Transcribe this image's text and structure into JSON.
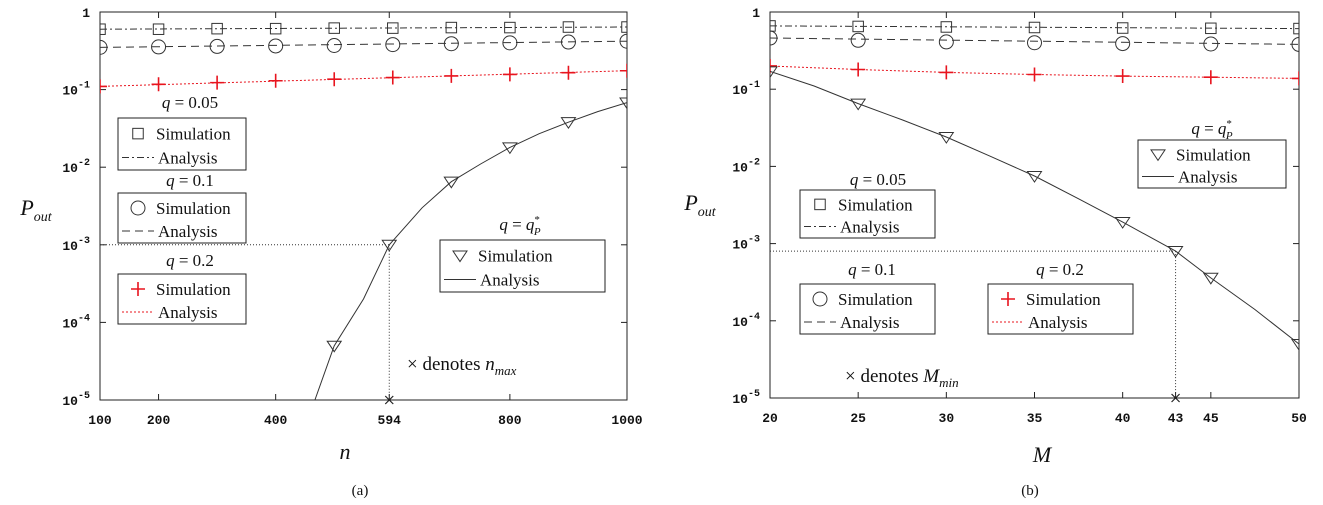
{
  "chart_data": [
    {
      "type": "line",
      "panel_label": "(a)",
      "xlabel": "n",
      "ylabel": "P",
      "ylabel_sub": "out",
      "xlim": [
        100,
        1000
      ],
      "ylim": [
        1e-05,
        1
      ],
      "yscale": "log",
      "xticks": [
        100,
        200,
        400,
        594,
        800,
        1000
      ],
      "xtick_labels": [
        "100",
        "200",
        "400",
        "594",
        "800",
        "1000"
      ],
      "yticks": [
        {
          "value": 1,
          "base": "1",
          "exp": ""
        },
        {
          "value": 0.1,
          "base": "10",
          "exp": "-1"
        },
        {
          "value": 0.01,
          "base": "10",
          "exp": "-2"
        },
        {
          "value": 0.001,
          "base": "10",
          "exp": "-3"
        },
        {
          "value": 0.0001,
          "base": "10",
          "exp": "-4"
        },
        {
          "value": 1e-05,
          "base": "10",
          "exp": "-5"
        }
      ],
      "series": [
        {
          "q": "0.05",
          "color": "#333333",
          "dash": "7,3,2,3",
          "marker": "square",
          "analysis_x": [
            100,
            1000
          ],
          "analysis_y": [
            0.6,
            0.64
          ],
          "sim_x": [
            100,
            200,
            300,
            400,
            500,
            600,
            700,
            800,
            900,
            1000
          ],
          "sim_y": [
            0.6,
            0.6,
            0.61,
            0.61,
            0.62,
            0.62,
            0.63,
            0.63,
            0.64,
            0.64
          ]
        },
        {
          "q": "0.1",
          "color": "#333333",
          "dash": "8,5",
          "marker": "circle",
          "analysis_x": [
            100,
            1000
          ],
          "analysis_y": [
            0.35,
            0.42
          ],
          "sim_x": [
            100,
            200,
            300,
            400,
            500,
            600,
            700,
            800,
            900,
            1000
          ],
          "sim_y": [
            0.35,
            0.355,
            0.36,
            0.365,
            0.37,
            0.38,
            0.39,
            0.4,
            0.41,
            0.42
          ]
        },
        {
          "q": "0.2",
          "color": "#e8141e",
          "dash": "2,2",
          "marker": "plus",
          "analysis_x": [
            100,
            1000
          ],
          "analysis_y": [
            0.11,
            0.175
          ],
          "sim_x": [
            100,
            200,
            300,
            400,
            500,
            600,
            700,
            800,
            900,
            1000
          ],
          "sim_y": [
            0.11,
            0.117,
            0.123,
            0.13,
            0.136,
            0.143,
            0.15,
            0.157,
            0.165,
            0.175
          ]
        },
        {
          "q": "opt",
          "color": "#333333",
          "dash": "",
          "marker": "triangle",
          "analysis_x": [
            467,
            500,
            550,
            594,
            650,
            700,
            750,
            800,
            850,
            900,
            950,
            1000
          ],
          "analysis_y": [
            1e-05,
            5e-05,
            0.0002,
            0.001,
            0.003,
            0.0065,
            0.011,
            0.018,
            0.027,
            0.038,
            0.052,
            0.068
          ],
          "sim_x": [
            500,
            594,
            700,
            800,
            900,
            1000
          ],
          "sim_y": [
            5e-05,
            0.001,
            0.0065,
            0.018,
            0.038,
            0.068
          ]
        }
      ],
      "marker_threshold": {
        "x": 594,
        "y": 0.001
      },
      "legends": [
        {
          "title_lhs": "q",
          "title_rhs": "0.05",
          "sim_label": "Simulation",
          "analysis_label": "Analysis",
          "series": 0
        },
        {
          "title_lhs": "q",
          "title_rhs": "0.1",
          "sim_label": "Simulation",
          "analysis_label": "Analysis",
          "series": 1
        },
        {
          "title_lhs": "q",
          "title_rhs": "0.2",
          "sim_label": "Simulation",
          "analysis_label": "Analysis",
          "series": 2
        },
        {
          "title_lhs": "q",
          "title_rhs": "q",
          "title_rhs_sub": "P",
          "title_rhs_sup": "*",
          "sim_label": "Simulation",
          "analysis_label": "Analysis",
          "series": 3
        }
      ],
      "annotation": {
        "prefix": "× denotes ",
        "var": "n",
        "sub": "max"
      }
    },
    {
      "type": "line",
      "panel_label": "(b)",
      "xlabel": "M",
      "ylabel": "P",
      "ylabel_sub": "out",
      "xlim": [
        20,
        50
      ],
      "ylim": [
        1e-05,
        1
      ],
      "yscale": "log",
      "xticks": [
        20,
        25,
        30,
        35,
        40,
        43,
        45,
        50
      ],
      "xtick_labels": [
        "20",
        "25",
        "30",
        "35",
        "40",
        "43",
        "45",
        "50"
      ],
      "yticks": [
        {
          "value": 1,
          "base": "1",
          "exp": ""
        },
        {
          "value": 0.1,
          "base": "10",
          "exp": "-1"
        },
        {
          "value": 0.01,
          "base": "10",
          "exp": "-2"
        },
        {
          "value": 0.001,
          "base": "10",
          "exp": "-3"
        },
        {
          "value": 0.0001,
          "base": "10",
          "exp": "-4"
        },
        {
          "value": 1e-05,
          "base": "10",
          "exp": "-5"
        }
      ],
      "series": [
        {
          "q": "0.05",
          "color": "#333333",
          "dash": "7,3,2,3",
          "marker": "square",
          "analysis_x": [
            20,
            50
          ],
          "analysis_y": [
            0.66,
            0.61
          ],
          "sim_x": [
            20,
            25,
            30,
            35,
            40,
            45,
            50
          ],
          "sim_y": [
            0.66,
            0.65,
            0.64,
            0.63,
            0.62,
            0.615,
            0.61
          ]
        },
        {
          "q": "0.1",
          "color": "#333333",
          "dash": "8,5",
          "marker": "circle",
          "analysis_x": [
            20,
            50
          ],
          "analysis_y": [
            0.46,
            0.38
          ],
          "sim_x": [
            20,
            25,
            30,
            35,
            40,
            45,
            50
          ],
          "sim_y": [
            0.46,
            0.43,
            0.41,
            0.4,
            0.39,
            0.385,
            0.38
          ]
        },
        {
          "q": "0.2",
          "color": "#e8141e",
          "dash": "2,2",
          "marker": "plus",
          "analysis_x": [
            20,
            25,
            30,
            35,
            40,
            45,
            50
          ],
          "analysis_y": [
            0.2,
            0.18,
            0.165,
            0.155,
            0.148,
            0.143,
            0.138
          ],
          "sim_x": [
            20,
            25,
            30,
            35,
            40,
            45,
            50
          ],
          "sim_y": [
            0.2,
            0.18,
            0.165,
            0.155,
            0.148,
            0.143,
            0.138
          ]
        },
        {
          "q": "opt",
          "color": "#333333",
          "dash": "",
          "marker": "triangle",
          "analysis_x": [
            20,
            22.5,
            25,
            27.5,
            30,
            32.5,
            35,
            37.5,
            40,
            43,
            45,
            47.5,
            50
          ],
          "analysis_y": [
            0.17,
            0.11,
            0.065,
            0.04,
            0.024,
            0.0135,
            0.0075,
            0.0038,
            0.0019,
            0.0008,
            0.00036,
            0.00014,
            5e-05
          ],
          "sim_x": [
            20,
            25,
            30,
            35,
            40,
            43,
            45,
            50
          ],
          "sim_y": [
            0.17,
            0.065,
            0.024,
            0.0075,
            0.0019,
            0.0008,
            0.00036,
            5e-05
          ]
        }
      ],
      "marker_threshold": {
        "x": 43,
        "y": 0.0008
      },
      "legends": [
        {
          "title_lhs": "q",
          "title_rhs": "q",
          "title_rhs_sub": "P",
          "title_rhs_sup": "*",
          "sim_label": "Simulation",
          "analysis_label": "Analysis",
          "series": 3
        },
        {
          "title_lhs": "q",
          "title_rhs": "0.05",
          "sim_label": "Simulation",
          "analysis_label": "Analysis",
          "series": 0
        },
        {
          "title_lhs": "q",
          "title_rhs": "0.1",
          "sim_label": "Simulation",
          "analysis_label": "Analysis",
          "series": 1
        },
        {
          "title_lhs": "q",
          "title_rhs": "0.2",
          "sim_label": "Simulation",
          "analysis_label": "Analysis",
          "series": 2
        }
      ],
      "annotation": {
        "prefix": "× denotes ",
        "var": "M",
        "sub": "min"
      }
    }
  ]
}
